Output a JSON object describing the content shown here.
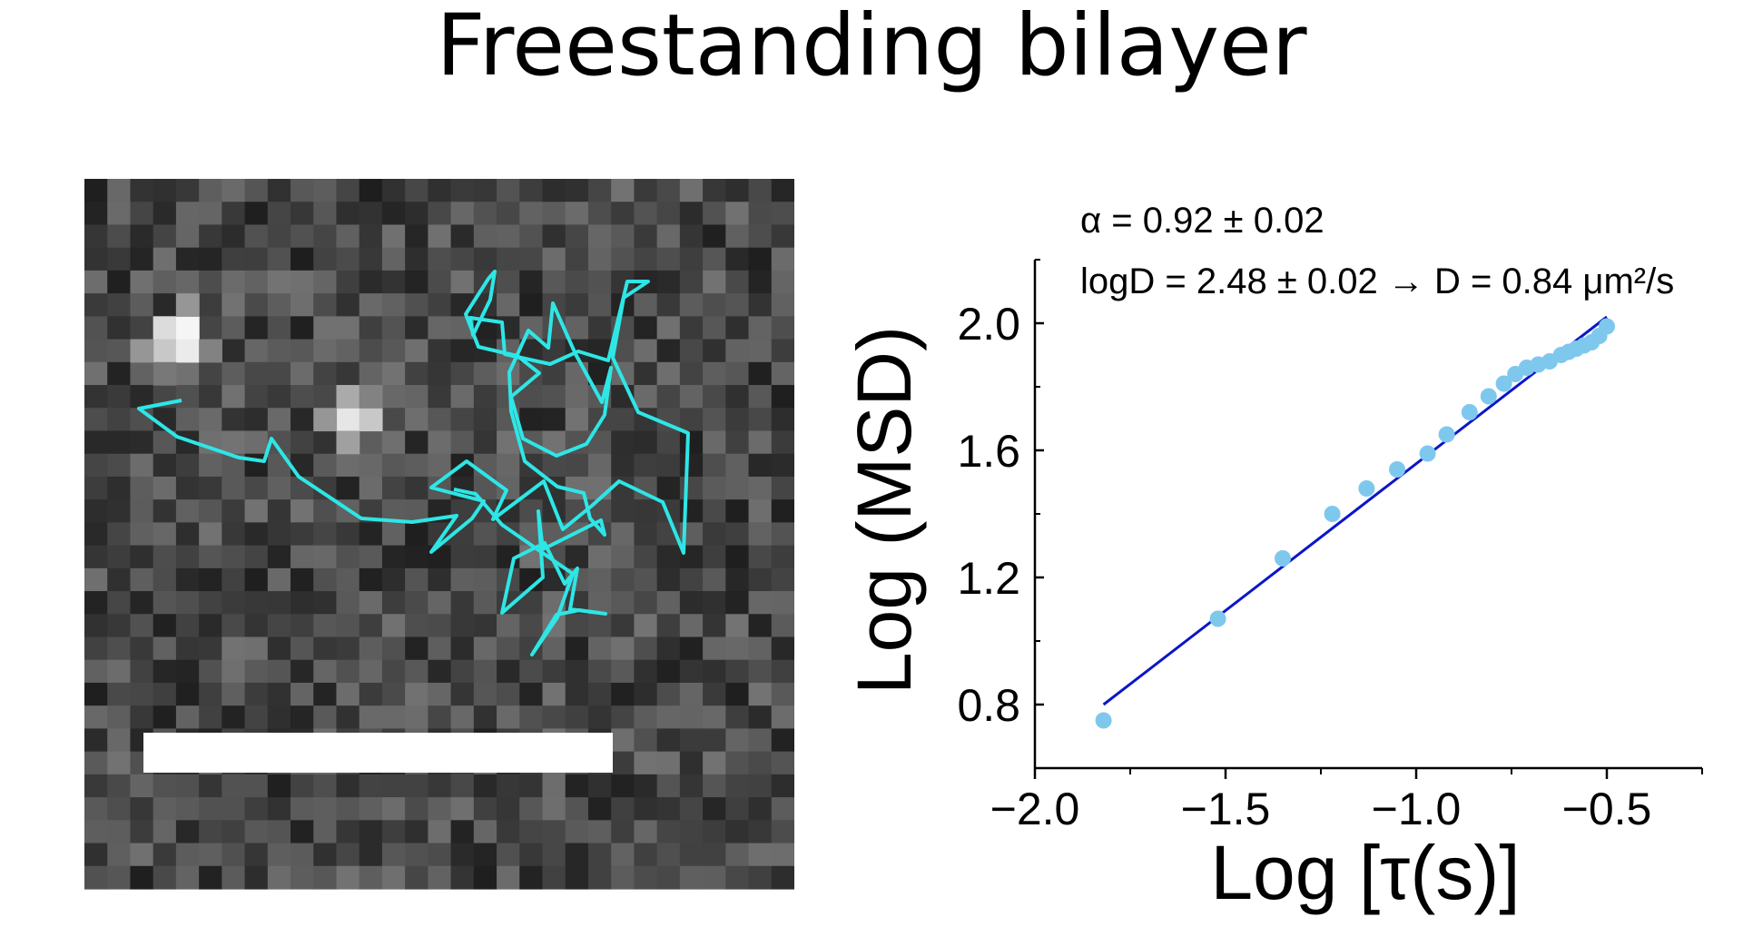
{
  "slide": {
    "title": "Freestanding bilayer"
  },
  "micrograph": {
    "trajectory_color": "#2ee6e6",
    "scale_bar_color": "#ffffff"
  },
  "chart_data": {
    "type": "scatter",
    "xlabel": "Log [τ(s)]",
    "ylabel": "Log (MSD)",
    "xlim": [
      -2.0,
      -0.25
    ],
    "ylim": [
      0.6,
      2.2
    ],
    "x_ticks": [
      "−2.0",
      "−1.5",
      "−1.0",
      "−0.5"
    ],
    "x_tick_values": [
      -2.0,
      -1.5,
      -1.0,
      -0.5
    ],
    "y_ticks": [
      "0.8",
      "1.2",
      "1.6",
      "2.0"
    ],
    "y_tick_values": [
      0.8,
      1.2,
      1.6,
      2.0
    ],
    "annotations": [
      "α = 0.92 ± 0.02",
      "logD = 2.48 ± 0.02 → D = 0.84 μm²/s"
    ],
    "grid": false,
    "series": [
      {
        "kind": "points",
        "color": "#7ec8ee",
        "points": [
          [
            -1.82,
            0.75
          ],
          [
            -1.52,
            1.07
          ],
          [
            -1.35,
            1.26
          ],
          [
            -1.22,
            1.4
          ],
          [
            -1.13,
            1.48
          ],
          [
            -1.05,
            1.54
          ],
          [
            -0.97,
            1.59
          ],
          [
            -0.92,
            1.65
          ],
          [
            -0.86,
            1.72
          ],
          [
            -0.81,
            1.77
          ],
          [
            -0.77,
            1.81
          ],
          [
            -0.74,
            1.84
          ],
          [
            -0.71,
            1.86
          ],
          [
            -0.68,
            1.87
          ],
          [
            -0.65,
            1.88
          ],
          [
            -0.62,
            1.9
          ],
          [
            -0.6,
            1.91
          ],
          [
            -0.58,
            1.92
          ],
          [
            -0.56,
            1.93
          ],
          [
            -0.54,
            1.94
          ],
          [
            -0.52,
            1.96
          ],
          [
            -0.5,
            1.99
          ]
        ]
      },
      {
        "kind": "fit-line",
        "color": "#0b16c9",
        "points": [
          [
            -1.82,
            0.8
          ],
          [
            -0.5,
            2.02
          ]
        ]
      }
    ]
  }
}
